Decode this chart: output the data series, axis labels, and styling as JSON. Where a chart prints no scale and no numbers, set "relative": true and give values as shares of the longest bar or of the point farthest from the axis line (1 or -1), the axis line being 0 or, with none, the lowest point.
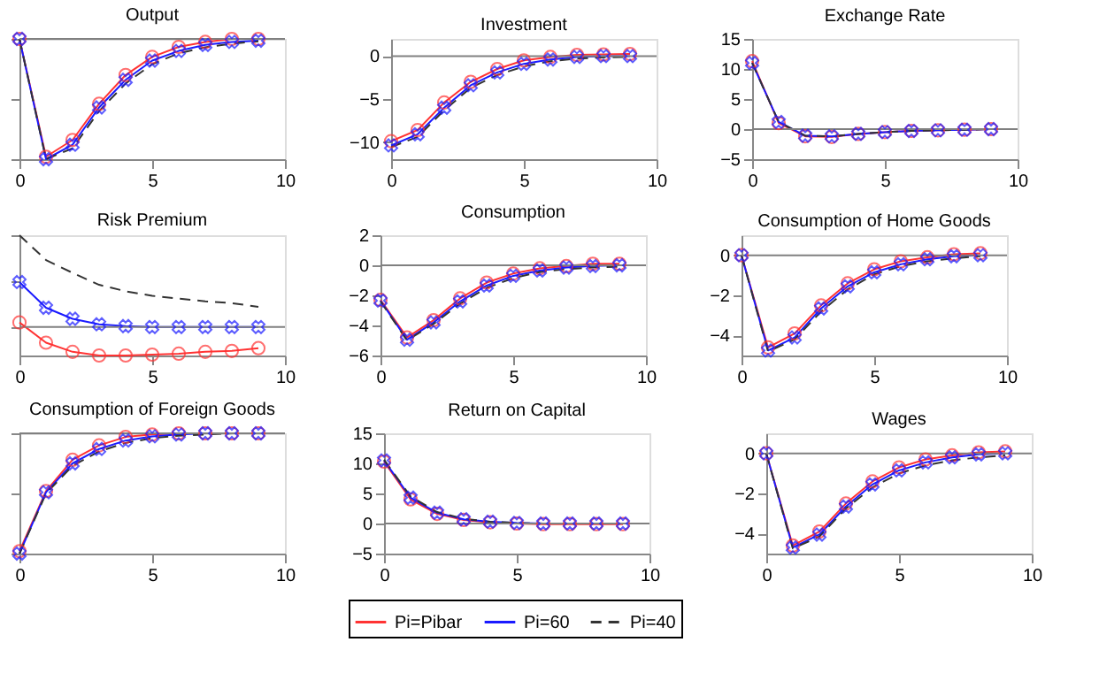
{
  "chart_data": [
    {
      "type": "line",
      "title": "Output",
      "relative": true,
      "tick_labels": "x",
      "x": [
        0,
        1,
        2,
        3,
        4,
        5,
        6,
        7,
        8,
        9
      ],
      "xlim": [
        0,
        10
      ],
      "xticks": [
        0,
        5,
        10
      ],
      "ref_lines": [
        {
          "axis": "y",
          "value": 0,
          "color": "#808080"
        }
      ],
      "series": [
        {
          "color": "#ff3333",
          "marker": "circle",
          "line_style": "solid",
          "values": [
            0,
            -0.98,
            -0.84,
            -0.54,
            -0.3,
            -0.15,
            -0.066,
            -0.025,
            0,
            0
          ]
        },
        {
          "color": "#1a1aff",
          "marker": "cross",
          "line_style": "solid",
          "values": [
            0,
            -1,
            -0.88,
            -0.57,
            -0.34,
            -0.18,
            -0.1,
            -0.05,
            -0.025,
            -0.015
          ]
        },
        {
          "color": "#333333",
          "marker": "none",
          "line_style": "dashed",
          "values": [
            0,
            -1,
            -0.91,
            -0.6,
            -0.37,
            -0.21,
            -0.12,
            -0.07,
            -0.04,
            -0.02
          ]
        }
      ]
    },
    {
      "type": "line",
      "title": "Investment",
      "x": [
        0,
        1,
        2,
        3,
        4,
        5,
        6,
        7,
        8,
        9
      ],
      "xlim": [
        0,
        10
      ],
      "xticks": [
        0,
        5,
        10
      ],
      "ylim": [
        -12,
        2
      ],
      "yticks": [
        -10,
        -5,
        0
      ],
      "ref_lines": [
        {
          "axis": "y",
          "value": 0,
          "color": "#808080"
        }
      ],
      "series": [
        {
          "color": "#ff3333",
          "marker": "circle",
          "line_style": "solid",
          "values": [
            -9.9,
            -8.6,
            -5.4,
            -3.0,
            -1.5,
            -0.5,
            -0.1,
            0.15,
            0.2,
            0.25
          ]
        },
        {
          "color": "#1a1aff",
          "marker": "cross",
          "line_style": "solid",
          "values": [
            -10.4,
            -9.1,
            -6.0,
            -3.4,
            -1.9,
            -0.9,
            -0.4,
            -0.1,
            0,
            0
          ]
        },
        {
          "color": "#333333",
          "marker": "none",
          "line_style": "dashed",
          "values": [
            -10.6,
            -9.4,
            -6.3,
            -3.7,
            -2.2,
            -1.2,
            -0.6,
            -0.3,
            -0.15,
            -0.1
          ]
        }
      ]
    },
    {
      "type": "line",
      "title": "Exchange Rate",
      "x": [
        0,
        1,
        2,
        3,
        4,
        5,
        6,
        7,
        8,
        9
      ],
      "xlim": [
        0,
        10
      ],
      "xticks": [
        0,
        5,
        10
      ],
      "ylim": [
        -5,
        15
      ],
      "yticks": [
        -5,
        0,
        5,
        10,
        15
      ],
      "ref_lines": [
        {
          "axis": "y",
          "value": 0,
          "color": "#808080"
        }
      ],
      "series": [
        {
          "color": "#ff3333",
          "marker": "circle",
          "line_style": "solid",
          "values": [
            11.3,
            1.0,
            -1.2,
            -1.3,
            -0.8,
            -0.5,
            -0.3,
            -0.2,
            -0.1,
            0
          ]
        },
        {
          "color": "#1a1aff",
          "marker": "cross",
          "line_style": "solid",
          "values": [
            11.0,
            1.2,
            -1.1,
            -1.2,
            -0.8,
            -0.5,
            -0.3,
            -0.2,
            -0.1,
            0
          ]
        },
        {
          "color": "#333333",
          "marker": "none",
          "line_style": "dashed",
          "values": [
            11.0,
            1.2,
            -1.1,
            -1.2,
            -0.8,
            -0.5,
            -0.3,
            -0.2,
            -0.1,
            0
          ]
        }
      ]
    },
    {
      "type": "line",
      "title": "Risk Premium",
      "relative": true,
      "tick_labels": "x",
      "x": [
        0,
        1,
        2,
        3,
        4,
        5,
        6,
        7,
        8,
        9
      ],
      "xlim": [
        0,
        10
      ],
      "xticks": [
        0,
        5,
        10
      ],
      "ref_lines": [
        {
          "axis": "y",
          "value": 0,
          "color": "#808080"
        }
      ],
      "series": [
        {
          "color": "#ff3333",
          "marker": "circle",
          "line_style": "solid",
          "values": [
            0.05,
            -0.17,
            -0.27,
            -0.31,
            -0.31,
            -0.3,
            -0.29,
            -0.27,
            -0.26,
            -0.23
          ]
        },
        {
          "color": "#1a1aff",
          "marker": "cross",
          "line_style": "solid",
          "values": [
            0.49,
            0.21,
            0.09,
            0.03,
            0.01,
            0,
            0,
            0,
            0,
            0
          ]
        },
        {
          "color": "#333333",
          "marker": "none",
          "line_style": "dashed",
          "values": [
            1.0,
            0.73,
            0.59,
            0.46,
            0.39,
            0.34,
            0.31,
            0.28,
            0.26,
            0.22
          ]
        }
      ]
    },
    {
      "type": "line",
      "title": "Consumption",
      "x": [
        0,
        1,
        2,
        3,
        4,
        5,
        6,
        7,
        8,
        9
      ],
      "xlim": [
        0,
        10
      ],
      "xticks": [
        0,
        5,
        10
      ],
      "ylim": [
        -6,
        2
      ],
      "yticks": [
        -6,
        -4,
        -2,
        0,
        2
      ],
      "ref_lines": [
        {
          "axis": "y",
          "value": 0,
          "color": "#808080"
        }
      ],
      "series": [
        {
          "color": "#ff3333",
          "marker": "circle",
          "line_style": "solid",
          "values": [
            -2.3,
            -4.8,
            -3.65,
            -2.2,
            -1.15,
            -0.55,
            -0.2,
            -0.05,
            0.1,
            0.1
          ]
        },
        {
          "color": "#1a1aff",
          "marker": "cross",
          "line_style": "solid",
          "values": [
            -2.35,
            -4.95,
            -3.8,
            -2.4,
            -1.35,
            -0.7,
            -0.35,
            -0.15,
            -0.05,
            0
          ]
        },
        {
          "color": "#333333",
          "marker": "none",
          "line_style": "dashed",
          "values": [
            -2.4,
            -5.0,
            -3.9,
            -2.55,
            -1.5,
            -0.85,
            -0.45,
            -0.25,
            -0.15,
            -0.1
          ]
        }
      ]
    },
    {
      "type": "line",
      "title": "Consumption of Home Goods",
      "x": [
        0,
        1,
        2,
        3,
        4,
        5,
        6,
        7,
        8,
        9
      ],
      "xlim": [
        0,
        10
      ],
      "xticks": [
        0,
        5,
        10
      ],
      "ylim": [
        -5,
        1
      ],
      "yticks": [
        -4,
        -2,
        0
      ],
      "ref_lines": [
        {
          "axis": "y",
          "value": 0,
          "color": "#808080"
        }
      ],
      "series": [
        {
          "color": "#ff3333",
          "marker": "circle",
          "line_style": "solid",
          "values": [
            0,
            -4.6,
            -3.9,
            -2.5,
            -1.4,
            -0.7,
            -0.3,
            -0.1,
            0.05,
            0.1
          ]
        },
        {
          "color": "#1a1aff",
          "marker": "cross",
          "line_style": "solid",
          "values": [
            0,
            -4.75,
            -4.1,
            -2.65,
            -1.55,
            -0.85,
            -0.45,
            -0.2,
            -0.05,
            0
          ]
        },
        {
          "color": "#333333",
          "marker": "none",
          "line_style": "dashed",
          "values": [
            0,
            -4.8,
            -4.2,
            -2.8,
            -1.7,
            -0.95,
            -0.55,
            -0.3,
            -0.15,
            -0.05
          ]
        }
      ]
    },
    {
      "type": "line",
      "title": "Consumption of Foreign Goods",
      "relative": true,
      "tick_labels": "x",
      "x": [
        0,
        1,
        2,
        3,
        4,
        5,
        6,
        7,
        8,
        9
      ],
      "xlim": [
        0,
        10
      ],
      "xticks": [
        0,
        5,
        10
      ],
      "ref_lines": [
        {
          "axis": "y",
          "value": 0,
          "color": "#808080"
        }
      ],
      "series": [
        {
          "color": "#ff3333",
          "marker": "circle",
          "line_style": "solid",
          "values": [
            -0.98,
            -0.48,
            -0.22,
            -0.1,
            -0.03,
            -0.01,
            0,
            0,
            0,
            0
          ]
        },
        {
          "color": "#1a1aff",
          "marker": "cross",
          "line_style": "solid",
          "values": [
            -1.0,
            -0.49,
            -0.25,
            -0.13,
            -0.06,
            -0.025,
            -0.01,
            0,
            0,
            0
          ]
        },
        {
          "color": "#333333",
          "marker": "none",
          "line_style": "dashed",
          "values": [
            -1.0,
            -0.5,
            -0.27,
            -0.15,
            -0.08,
            -0.04,
            -0.02,
            -0.01,
            0,
            0
          ]
        }
      ]
    },
    {
      "type": "line",
      "title": "Return on Capital",
      "legend": "bottom",
      "x": [
        0,
        1,
        2,
        3,
        4,
        5,
        6,
        7,
        8,
        9
      ],
      "xlim": [
        0,
        10
      ],
      "xticks": [
        0,
        5,
        10
      ],
      "ylim": [
        -5,
        15
      ],
      "yticks": [
        -5,
        0,
        5,
        10,
        15
      ],
      "ref_lines": [
        {
          "axis": "y",
          "value": 0,
          "color": "#808080"
        }
      ],
      "series": [
        {
          "name": "Pi=Pibar",
          "color": "#ff3333",
          "marker": "circle",
          "line_style": "solid",
          "values": [
            10.3,
            4.0,
            1.6,
            0.6,
            0.2,
            0,
            -0.1,
            -0.1,
            -0.1,
            -0.1
          ]
        },
        {
          "name": "Pi=60",
          "color": "#1a1aff",
          "marker": "cross",
          "line_style": "solid",
          "values": [
            10.5,
            4.3,
            1.8,
            0.7,
            0.3,
            0.1,
            0,
            0,
            0,
            0
          ]
        },
        {
          "name": "Pi=40",
          "color": "#333333",
          "marker": "none",
          "line_style": "dashed",
          "values": [
            10.6,
            4.5,
            1.9,
            0.8,
            0.3,
            0.1,
            0,
            0,
            0,
            0
          ]
        }
      ]
    },
    {
      "type": "line",
      "title": "Wages",
      "x": [
        0,
        1,
        2,
        3,
        4,
        5,
        6,
        7,
        8,
        9
      ],
      "xlim": [
        0,
        10
      ],
      "xticks": [
        0,
        5,
        10
      ],
      "ylim": [
        -5,
        1
      ],
      "yticks": [
        -4,
        -2,
        0
      ],
      "ref_lines": [
        {
          "axis": "y",
          "value": 0,
          "color": "#808080"
        }
      ],
      "series": [
        {
          "color": "#ff3333",
          "marker": "circle",
          "line_style": "solid",
          "values": [
            0,
            -4.6,
            -3.9,
            -2.5,
            -1.4,
            -0.7,
            -0.3,
            -0.1,
            0.05,
            0.1
          ]
        },
        {
          "color": "#1a1aff",
          "marker": "cross",
          "line_style": "solid",
          "values": [
            0,
            -4.7,
            -4.05,
            -2.65,
            -1.55,
            -0.85,
            -0.45,
            -0.2,
            -0.05,
            0
          ]
        },
        {
          "color": "#333333",
          "marker": "none",
          "line_style": "dashed",
          "values": [
            0,
            -4.75,
            -4.15,
            -2.75,
            -1.7,
            -1.0,
            -0.6,
            -0.35,
            -0.2,
            -0.1
          ]
        }
      ]
    }
  ]
}
